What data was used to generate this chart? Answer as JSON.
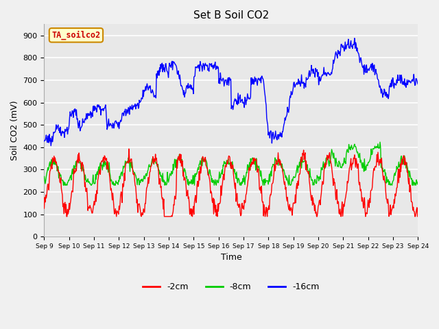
{
  "title": "Set B Soil CO2",
  "xlabel": "Time",
  "ylabel": "Soil CO2 (mV)",
  "xlim_days": [
    9,
    24
  ],
  "ylim": [
    0,
    950
  ],
  "yticks": [
    0,
    100,
    200,
    300,
    400,
    500,
    600,
    700,
    800,
    900
  ],
  "xtick_labels": [
    "Sep 9",
    "Sep 10",
    "Sep 11",
    "Sep 12",
    "Sep 13",
    "Sep 14",
    "Sep 15",
    "Sep 16",
    "Sep 17",
    "Sep 18",
    "Sep 19",
    "Sep 20",
    "Sep 21",
    "Sep 22",
    "Sep 23",
    "Sep 24"
  ],
  "legend_labels": [
    "-2cm",
    "-8cm",
    "-16cm"
  ],
  "legend_colors": [
    "#ff0000",
    "#00cc00",
    "#0000ff"
  ],
  "annotation_text": "TA_soilco2",
  "annotation_bg": "#ffffcc",
  "annotation_border": "#cc8800",
  "plot_bg_color": "#e8e8e8",
  "fig_bg_color": "#f0f0f0",
  "grid_color": "#ffffff",
  "series_2cm_color": "#ff0000",
  "series_8cm_color": "#00cc00",
  "series_16cm_color": "#0000ff",
  "title_fontsize": 11,
  "axis_label_fontsize": 9,
  "tick_fontsize": 8
}
